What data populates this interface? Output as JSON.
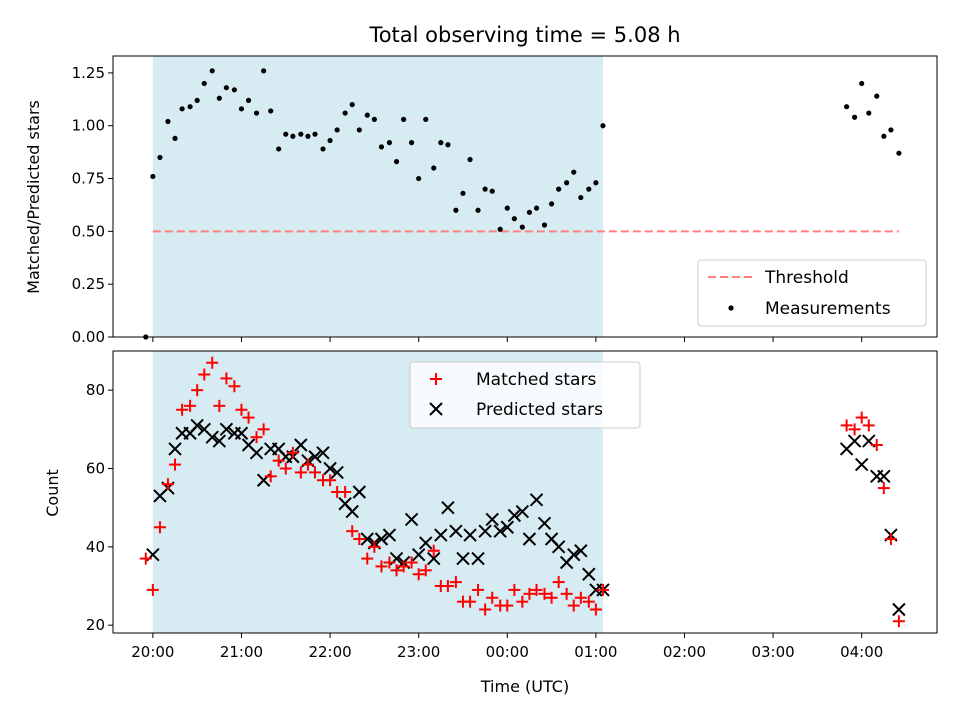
{
  "chart_data": [
    {
      "type": "scatter",
      "title": "Total observing time = 5.08 h",
      "xlabel": "",
      "ylabel": "Matched/Predicted stars",
      "xlim_hours": [
        19.55,
        28.85
      ],
      "ylim": [
        0,
        1.33
      ],
      "yticks": [
        0,
        0.25,
        0.5,
        0.75,
        1.0,
        1.25
      ],
      "ytick_labels": [
        "0.00",
        "0.25",
        "0.50",
        "0.75",
        "1.00",
        "1.25"
      ],
      "shaded_interval_hours": [
        20.0,
        25.08
      ],
      "threshold": {
        "name": "Threshold",
        "y": 0.5,
        "x_range_hours": [
          20.0,
          28.42
        ],
        "color": "#ff7f7f"
      },
      "legend": {
        "placement": "lower right",
        "entries": [
          "Threshold",
          "Measurements"
        ]
      },
      "series": [
        {
          "name": "Measurements",
          "color": "#000000",
          "x_hours": [
            19.92,
            20.0,
            20.08,
            20.17,
            20.25,
            20.33,
            20.42,
            20.5,
            20.58,
            20.67,
            20.75,
            20.83,
            20.92,
            21.0,
            21.08,
            21.17,
            21.25,
            21.33,
            21.42,
            21.5,
            21.58,
            21.67,
            21.75,
            21.83,
            21.92,
            22.0,
            22.08,
            22.17,
            22.25,
            22.33,
            22.42,
            22.5,
            22.58,
            22.67,
            22.75,
            22.83,
            22.92,
            23.0,
            23.08,
            23.17,
            23.25,
            23.33,
            23.42,
            23.5,
            23.58,
            23.67,
            23.75,
            23.83,
            23.92,
            24.0,
            24.08,
            24.17,
            24.25,
            24.33,
            24.42,
            24.5,
            24.58,
            24.67,
            24.75,
            24.83,
            24.92,
            25.0,
            25.08,
            27.83,
            27.92,
            28.0,
            28.08,
            28.17,
            28.25,
            28.33,
            28.42
          ],
          "y": [
            0.0,
            0.76,
            0.85,
            1.02,
            0.94,
            1.08,
            1.09,
            1.12,
            1.2,
            1.26,
            1.13,
            1.18,
            1.17,
            1.08,
            1.12,
            1.06,
            1.26,
            1.07,
            0.89,
            0.96,
            0.95,
            0.96,
            0.95,
            0.96,
            0.89,
            0.93,
            0.98,
            1.06,
            1.1,
            0.98,
            1.05,
            1.03,
            0.9,
            0.92,
            0.83,
            1.03,
            0.92,
            0.75,
            1.03,
            0.8,
            0.92,
            0.91,
            0.6,
            0.68,
            0.84,
            0.6,
            0.7,
            0.69,
            0.51,
            0.61,
            0.56,
            0.52,
            0.59,
            0.61,
            0.53,
            0.63,
            0.7,
            0.73,
            0.78,
            0.66,
            0.7,
            0.73,
            1.0,
            1.09,
            1.04,
            1.2,
            1.06,
            1.14,
            0.95,
            0.98,
            0.87
          ]
        }
      ]
    },
    {
      "type": "scatter",
      "title": "",
      "xlabel": "Time (UTC)",
      "ylabel": "Count",
      "xlim_hours": [
        19.55,
        28.85
      ],
      "ylim": [
        18,
        90
      ],
      "yticks": [
        20,
        40,
        60,
        80
      ],
      "ytick_labels": [
        "20",
        "40",
        "60",
        "80"
      ],
      "xticks_hours": [
        20,
        21,
        22,
        23,
        24,
        25,
        26,
        27,
        28
      ],
      "xtick_labels": [
        "20:00",
        "21:00",
        "22:00",
        "23:00",
        "00:00",
        "01:00",
        "02:00",
        "03:00",
        "04:00"
      ],
      "shaded_interval_hours": [
        20.0,
        25.08
      ],
      "legend": {
        "placement": "upper center",
        "entries": [
          "Matched stars",
          "Predicted stars"
        ]
      },
      "series": [
        {
          "name": "Matched stars",
          "marker": "+",
          "color": "#ff0000",
          "x_hours": [
            19.92,
            20.0,
            20.08,
            20.17,
            20.25,
            20.33,
            20.42,
            20.5,
            20.58,
            20.67,
            20.75,
            20.83,
            20.92,
            21.0,
            21.08,
            21.17,
            21.25,
            21.33,
            21.42,
            21.5,
            21.58,
            21.67,
            21.75,
            21.83,
            21.92,
            22.0,
            22.08,
            22.17,
            22.25,
            22.33,
            22.42,
            22.5,
            22.58,
            22.67,
            22.75,
            22.83,
            22.92,
            23.0,
            23.08,
            23.17,
            23.25,
            23.33,
            23.42,
            23.5,
            23.58,
            23.67,
            23.75,
            23.83,
            23.92,
            24.0,
            24.08,
            24.17,
            24.25,
            24.33,
            24.42,
            24.5,
            24.58,
            24.67,
            24.75,
            24.83,
            24.92,
            25.0,
            25.08,
            27.83,
            27.92,
            28.0,
            28.08,
            28.17,
            28.25,
            28.33,
            28.42
          ],
          "y": [
            37,
            29,
            45,
            56,
            61,
            75,
            76,
            80,
            84,
            87,
            76,
            83,
            81,
            75,
            73,
            68,
            70,
            58,
            62,
            60,
            64,
            59,
            61,
            59,
            57,
            57,
            54,
            54,
            44,
            42,
            37,
            40,
            35,
            36,
            34,
            35,
            36,
            33,
            34,
            39,
            30,
            30,
            31,
            26,
            26,
            29,
            24,
            27,
            25,
            25,
            29,
            26,
            28,
            29,
            28,
            27,
            31,
            28,
            25,
            27,
            26,
            24,
            29,
            71,
            70,
            73,
            71,
            66,
            55,
            42,
            21
          ]
        },
        {
          "name": "Predicted stars",
          "marker": "x",
          "color": "#000000",
          "x_hours": [
            20.0,
            20.08,
            20.17,
            20.25,
            20.33,
            20.42,
            20.5,
            20.58,
            20.67,
            20.75,
            20.83,
            20.92,
            21.0,
            21.08,
            21.17,
            21.25,
            21.33,
            21.42,
            21.5,
            21.58,
            21.67,
            21.75,
            21.83,
            21.92,
            22.0,
            22.08,
            22.17,
            22.25,
            22.33,
            22.42,
            22.5,
            22.58,
            22.67,
            22.75,
            22.83,
            22.92,
            23.0,
            23.08,
            23.17,
            23.25,
            23.33,
            23.42,
            23.5,
            23.58,
            23.67,
            23.75,
            23.83,
            23.92,
            24.0,
            24.08,
            24.17,
            24.25,
            24.33,
            24.42,
            24.5,
            24.58,
            24.67,
            24.75,
            24.83,
            24.92,
            25.0,
            25.08,
            27.83,
            27.92,
            28.0,
            28.08,
            28.17,
            28.25,
            28.33,
            28.42
          ],
          "y": [
            38,
            53,
            55,
            65,
            69,
            69,
            71,
            70,
            68,
            67,
            70,
            69,
            69,
            66,
            64,
            57,
            65,
            65,
            63,
            63,
            66,
            62,
            63,
            64,
            60,
            59,
            51,
            49,
            54,
            42,
            41,
            42,
            43,
            37,
            36,
            47,
            38,
            41,
            37,
            43,
            50,
            44,
            37,
            43,
            37,
            44,
            47,
            44,
            45,
            48,
            49,
            42,
            52,
            46,
            42,
            40,
            36,
            38,
            39,
            33,
            29,
            29,
            65,
            67,
            61,
            67,
            58,
            58,
            43,
            24
          ]
        }
      ]
    }
  ]
}
